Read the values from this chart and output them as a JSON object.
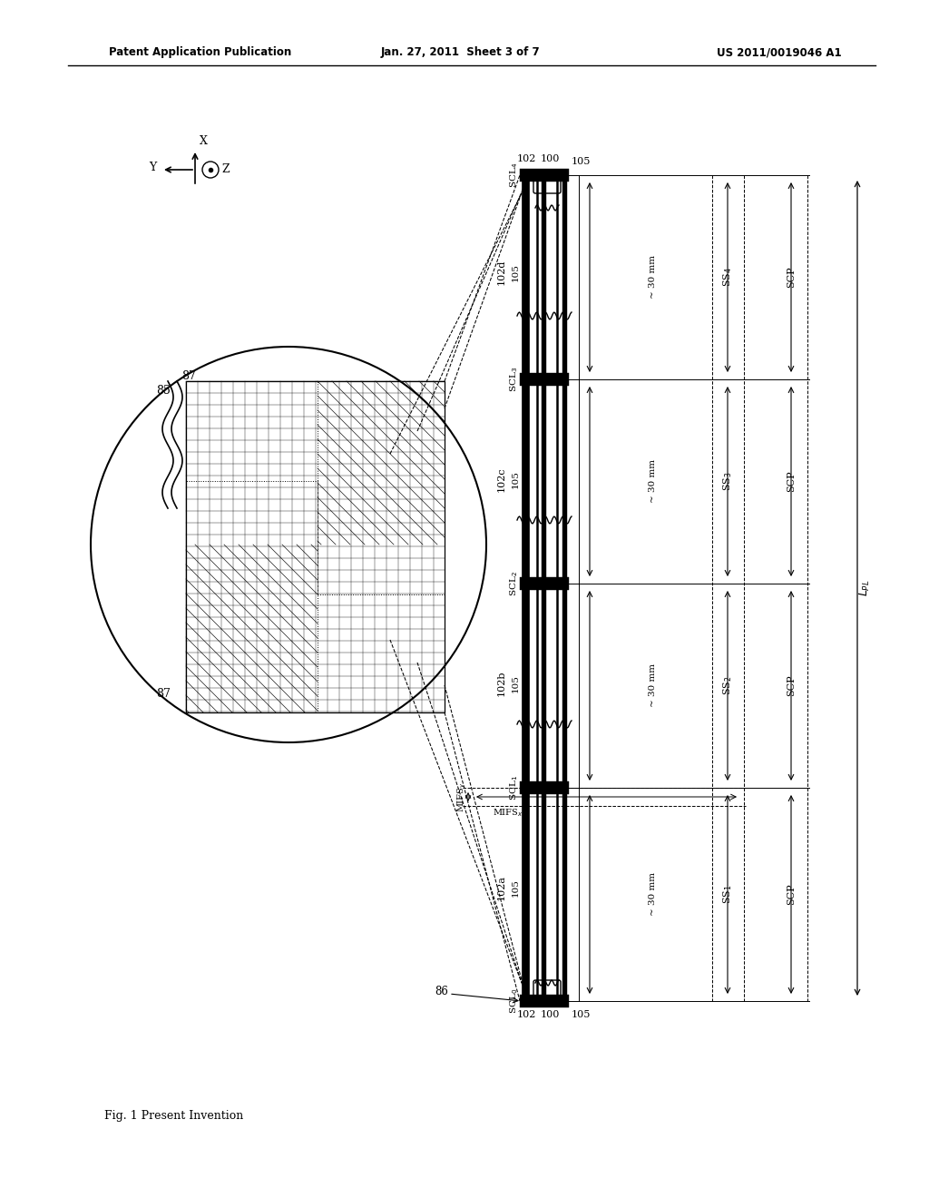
{
  "title_left": "Patent Application Publication",
  "title_center": "Jan. 27, 2011  Sheet 3 of 7",
  "title_right": "US 2011/0019046 A1",
  "fig_caption": "Fig. 1 Present Invention",
  "background_color": "#ffffff"
}
